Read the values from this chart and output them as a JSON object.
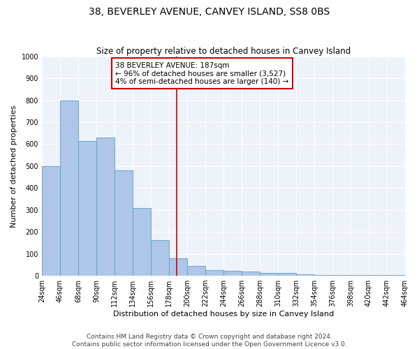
{
  "title": "38, BEVERLEY AVENUE, CANVEY ISLAND, SS8 0BS",
  "subtitle": "Size of property relative to detached houses in Canvey Island",
  "xlabel": "Distribution of detached houses by size in Canvey Island",
  "ylabel": "Number of detached properties",
  "footer_line1": "Contains HM Land Registry data © Crown copyright and database right 2024.",
  "footer_line2": "Contains public sector information licensed under the Open Government Licence v3.0.",
  "annotation_line1": "38 BEVERLEY AVENUE: 187sqm",
  "annotation_line2": "← 96% of detached houses are smaller (3,527)",
  "annotation_line3": "4% of semi-detached houses are larger (140) →",
  "property_size": 187,
  "bin_edges": [
    24,
    46,
    68,
    90,
    112,
    134,
    156,
    178,
    200,
    222,
    244,
    266,
    288,
    310,
    332,
    354,
    376,
    398,
    420,
    442,
    464
  ],
  "bar_heights": [
    500,
    800,
    615,
    630,
    480,
    308,
    163,
    80,
    46,
    25,
    22,
    20,
    13,
    12,
    7,
    4,
    4,
    4,
    4,
    4
  ],
  "bar_color": "#aec6e8",
  "bar_edge_color": "#5a9fd4",
  "vline_color": "#cc0000",
  "vline_x": 187,
  "annotation_box_color": "#cc0000",
  "ylim": [
    0,
    1000
  ],
  "yticks": [
    0,
    100,
    200,
    300,
    400,
    500,
    600,
    700,
    800,
    900,
    1000
  ],
  "bg_color": "#eef2f9",
  "grid_color": "#ffffff",
  "title_fontsize": 10,
  "subtitle_fontsize": 8.5,
  "axis_label_fontsize": 8,
  "tick_fontsize": 7,
  "annotation_fontsize": 7.5,
  "footer_fontsize": 6.5
}
